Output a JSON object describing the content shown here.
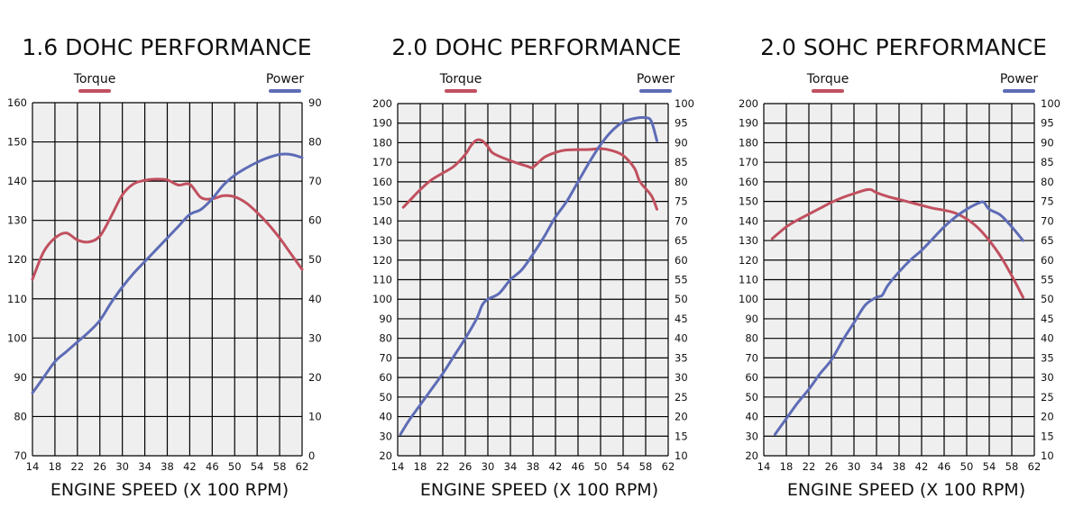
{
  "colors": {
    "torque": "#c1505f",
    "power": "#5e6cb6",
    "plot_bg": "#efefef",
    "grid": "#000000"
  },
  "chart_data": [
    {
      "type": "line",
      "title": "1.6 DOHC PERFORMANCE",
      "xlabel": "ENGINE SPEED (X 100 RPM)",
      "legend": {
        "torque": "Torque",
        "power": "Power"
      },
      "xlim": [
        14,
        62
      ],
      "xticks": [
        14,
        18,
        22,
        26,
        30,
        34,
        38,
        42,
        46,
        50,
        54,
        58,
        62
      ],
      "ylim_left": [
        70,
        160
      ],
      "yticks_left": [
        70,
        80,
        90,
        100,
        110,
        120,
        130,
        140,
        150,
        160
      ],
      "ylim_right": [
        0,
        90
      ],
      "yticks_right": [
        0,
        10,
        20,
        30,
        40,
        50,
        60,
        70,
        80,
        90
      ],
      "series": [
        {
          "name": "Torque",
          "axis": "left",
          "x": [
            14,
            16,
            18,
            20,
            22,
            24,
            26,
            28,
            30,
            32,
            34,
            36,
            38,
            40,
            42,
            44,
            46,
            48,
            50,
            52,
            54,
            56,
            58,
            60,
            62
          ],
          "y": [
            115,
            122,
            125.5,
            126.8,
            125,
            124.5,
            126,
            131,
            136.5,
            139.3,
            140.2,
            140.5,
            140.3,
            139,
            139.2,
            135.8,
            135.5,
            136.3,
            136,
            134.5,
            132,
            129,
            125.5,
            121.5,
            117.5
          ]
        },
        {
          "name": "Power",
          "axis": "right",
          "x": [
            14,
            16,
            18,
            20,
            22,
            24,
            26,
            28,
            30,
            32,
            34,
            36,
            38,
            40,
            42,
            44,
            46,
            48,
            50,
            52,
            54,
            56,
            58,
            60,
            62
          ],
          "y": [
            16,
            20,
            24,
            26.5,
            29,
            31.5,
            34.5,
            39,
            43,
            46.5,
            49.5,
            52.5,
            55.5,
            58.5,
            61.5,
            62.8,
            65.5,
            69,
            71.5,
            73.3,
            74.8,
            76,
            76.8,
            76.8,
            76
          ]
        }
      ]
    },
    {
      "type": "line",
      "title": "2.0 DOHC PERFORMANCE",
      "xlabel": "ENGINE SPEED (X 100 RPM)",
      "legend": {
        "torque": "Torque",
        "power": "Power"
      },
      "xlim": [
        14,
        62
      ],
      "xticks": [
        14,
        18,
        22,
        26,
        30,
        34,
        38,
        42,
        46,
        50,
        54,
        58,
        62
      ],
      "ylim_left": [
        20,
        200
      ],
      "yticks_left": [
        20,
        30,
        40,
        50,
        60,
        70,
        80,
        90,
        100,
        110,
        120,
        130,
        140,
        150,
        160,
        170,
        180,
        190,
        200
      ],
      "ylim_right": [
        10,
        100
      ],
      "yticks_right": [
        10,
        15,
        20,
        25,
        30,
        35,
        40,
        45,
        50,
        55,
        60,
        65,
        70,
        75,
        80,
        85,
        90,
        95,
        100
      ],
      "series": [
        {
          "name": "Torque",
          "axis": "left",
          "x": [
            15,
            16,
            18,
            20,
            22,
            24,
            26,
            27,
            28,
            29,
            30,
            31,
            34,
            37,
            38,
            40,
            42,
            44,
            48,
            50,
            52,
            54,
            56,
            57,
            59,
            60
          ],
          "y": [
            147,
            150,
            156,
            161,
            164.5,
            168,
            174,
            178.5,
            181.3,
            181,
            178,
            174.5,
            170.8,
            168,
            167.5,
            172.5,
            175,
            176.3,
            176.5,
            177,
            176,
            173.5,
            167,
            160,
            153,
            146
          ]
        },
        {
          "name": "Power",
          "axis": "right",
          "x": [
            14.5,
            16,
            18,
            20,
            22,
            24,
            26,
            28,
            29,
            30,
            32,
            34,
            36,
            38,
            40,
            42,
            44,
            46,
            48,
            50,
            52,
            54,
            56,
            58,
            59,
            60
          ],
          "y": [
            15.5,
            19,
            23,
            27,
            31,
            35.5,
            40,
            45,
            48.5,
            50,
            51.5,
            55,
            57.5,
            61.5,
            66,
            71,
            75,
            80,
            85,
            89.5,
            93,
            95.3,
            96.2,
            96.4,
            95.5,
            90.5
          ]
        }
      ]
    },
    {
      "type": "line",
      "title": "2.0 SOHC PERFORMANCE",
      "xlabel": "ENGINE SPEED (X 100 RPM)",
      "legend": {
        "torque": "Torque",
        "power": "Power"
      },
      "xlim": [
        14,
        62
      ],
      "xticks": [
        14,
        18,
        22,
        26,
        30,
        34,
        38,
        42,
        46,
        50,
        54,
        58,
        62
      ],
      "ylim_left": [
        20,
        200
      ],
      "yticks_left": [
        20,
        30,
        40,
        50,
        60,
        70,
        80,
        90,
        100,
        110,
        120,
        130,
        140,
        150,
        160,
        170,
        180,
        190,
        200
      ],
      "ylim_right": [
        10,
        100
      ],
      "yticks_right": [
        10,
        15,
        20,
        25,
        30,
        35,
        40,
        45,
        50,
        55,
        60,
        65,
        70,
        75,
        80,
        85,
        90,
        95,
        100
      ],
      "series": [
        {
          "name": "Torque",
          "axis": "left",
          "x": [
            15.5,
            18,
            20,
            22,
            24,
            26,
            28,
            30,
            32,
            33,
            34,
            36,
            38,
            40,
            42,
            44,
            46,
            48,
            50,
            52,
            54,
            56,
            58,
            60
          ],
          "y": [
            131,
            137,
            140.5,
            143.5,
            146.5,
            149.5,
            152,
            154,
            155.8,
            156,
            154.5,
            152.5,
            151,
            149.5,
            148,
            146.5,
            145.5,
            144,
            141,
            136.5,
            130,
            122,
            112,
            101
          ]
        },
        {
          "name": "Power",
          "axis": "right",
          "x": [
            16,
            18,
            20,
            22,
            24,
            26,
            28,
            30,
            32,
            34,
            35,
            36,
            38,
            40,
            42,
            44,
            46,
            48,
            50,
            52,
            53,
            54,
            56,
            58,
            60
          ],
          "y": [
            15.5,
            19.5,
            23.5,
            27,
            31,
            34.5,
            39.5,
            44,
            48.5,
            50.5,
            51,
            53.5,
            57,
            60,
            62.5,
            65.5,
            68.5,
            71,
            73,
            74.5,
            74.8,
            73,
            71.5,
            68.5,
            65
          ]
        }
      ]
    }
  ]
}
